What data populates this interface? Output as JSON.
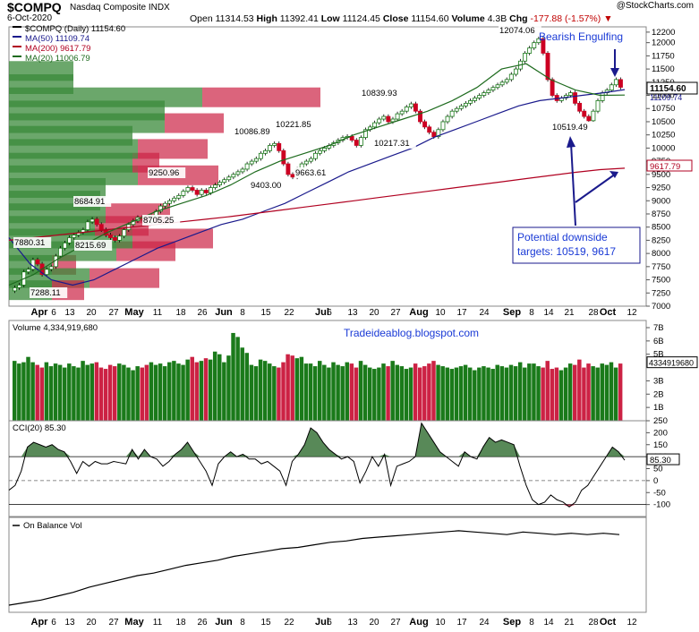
{
  "header": {
    "ticker": "$COMPQ",
    "date": "6-Oct-2020",
    "subtitle": "Nasdaq Composite INDX",
    "copyright": "@StockCharts.com",
    "open_label": "Open",
    "open": "11314.53",
    "high_label": "High",
    "high": "11392.41",
    "low_label": "Low",
    "low": "11124.45",
    "close_label": "Close",
    "close": "11154.60",
    "volume_label": "Volume",
    "volume": "4.3B",
    "chg_label": "Chg",
    "chg": "-177.88 (-1.57%)"
  },
  "price_panel": {
    "legend": [
      "$COMPQ (Daily) 11154.60",
      "MA(50) 11109.74",
      "MA(200) 9617.79",
      "MA(20) 11006.79"
    ],
    "legend_colors": [
      "#000000",
      "#1a1a8c",
      "#b00020",
      "#1e6b1e"
    ],
    "yticks": [
      "12200",
      "12000",
      "11750",
      "11500",
      "11250",
      "11000",
      "10750",
      "10500",
      "10250",
      "10000",
      "9750",
      "9500",
      "9250",
      "9000",
      "8750",
      "8500",
      "8250",
      "8000",
      "7750",
      "7500",
      "7250",
      "7000"
    ],
    "last_price": "11154.60",
    "ma50_value": "11109.74",
    "ma200_value": "9617.79",
    "annotations": {
      "bearish": "Bearish Engulfing",
      "targets_line1": "Potential downside",
      "targets_line2": "targets: 10519, 9617"
    },
    "price_labels": [
      "12074.06",
      "10839.93",
      "10221.85",
      "10086.89",
      "10217.31",
      "9663.61",
      "9403.00",
      "9250.96",
      "8684.91",
      "8705.25",
      "8215.69",
      "7880.31",
      "7288.11",
      "10519.49"
    ]
  },
  "volume_panel": {
    "legend": "Volume 4,334,919,680",
    "yticks": [
      "7B",
      "6B",
      "5B",
      "3B",
      "2B",
      "1B"
    ],
    "last_value": "4334919680",
    "watermark": "Tradeideablog.blogspot.com"
  },
  "cci_panel": {
    "legend": "CCI(20) 85.30",
    "yticks": [
      "250",
      "200",
      "150",
      "100",
      "50",
      "0",
      "-50",
      "-100"
    ],
    "last_value": "85.30"
  },
  "obv_panel": {
    "legend": "On Balance Vol"
  },
  "x_axis": {
    "labels": [
      "Apr",
      "6",
      "13",
      "20",
      "27",
      "May",
      "11",
      "18",
      "26",
      "Jun",
      "8",
      "15",
      "22",
      "Jul",
      "6",
      "13",
      "20",
      "27",
      "Aug",
      "10",
      "17",
      "24",
      "Sep",
      "8",
      "14",
      "21",
      "28",
      "Oct",
      "12"
    ]
  },
  "chart_data": [
    {
      "type": "candlestick",
      "title": "$COMPQ (Daily) 11154.60",
      "ylim": [
        7000,
        12300
      ],
      "series": [
        {
          "name": "$COMPQ",
          "values": [
            7350,
            7400,
            7650,
            7700,
            7880,
            7800,
            7600,
            7700,
            7750,
            7950,
            8100,
            8200,
            8300,
            8350,
            8400,
            8450,
            8600,
            8650,
            8550,
            8450,
            8350,
            8300,
            8250,
            8330,
            8450,
            8550,
            8620,
            8684,
            8650,
            8600,
            8700,
            8800,
            8900,
            8950,
            9000,
            9050,
            9100,
            9180,
            9250,
            9200,
            9120,
            9200,
            9150,
            9250,
            9300,
            9350,
            9400,
            9450,
            9500,
            9550,
            9600,
            9700,
            9750,
            9800,
            9900,
            9950,
            10050,
            10086,
            9950,
            9700,
            9500,
            9450,
            9600,
            9700,
            9750,
            9800,
            9900,
            9950,
            10000,
            10050,
            10100,
            10150,
            10200,
            10221,
            10150,
            10050,
            10200,
            10350,
            10400,
            10480,
            10550,
            10600,
            10500,
            10550,
            10650,
            10700,
            10780,
            10839,
            10700,
            10500,
            10400,
            10300,
            10217,
            10350,
            10500,
            10600,
            10700,
            10750,
            10800,
            10850,
            10900,
            10950,
            11000,
            11050,
            11100,
            11150,
            11200,
            11250,
            11300,
            11400,
            11500,
            11650,
            11800,
            11900,
            12000,
            12074,
            11800,
            11300,
            11000,
            10900,
            10950,
            11000,
            11050,
            10850,
            10700,
            10600,
            10519,
            10700,
            10900,
            11050,
            11100,
            11200,
            11300,
            11154
          ]
        },
        {
          "name": "MA(50)",
          "values": [
            8300,
            7800,
            7500,
            7400,
            7500,
            7700,
            7900,
            8100,
            8250,
            8400,
            8550,
            8650,
            8800,
            8950,
            9150,
            9350,
            9550,
            9700,
            9850,
            10000,
            10200,
            10350,
            10500,
            10650,
            10800,
            10900,
            10950,
            11000,
            11050,
            11109
          ]
        },
        {
          "name": "MA(200)",
          "values": [
            8250,
            8300,
            8350,
            8400,
            8450,
            8500,
            8550,
            8600,
            8650,
            8700,
            8760,
            8820,
            8880,
            8940,
            9000,
            9060,
            9120,
            9180,
            9240,
            9300,
            9360,
            9420,
            9480,
            9540,
            9590,
            9617
          ]
        },
        {
          "name": "MA(20)",
          "values": [
            7400,
            7600,
            7900,
            8150,
            8400,
            8600,
            8800,
            8950,
            9100,
            9300,
            9550,
            9750,
            9900,
            10050,
            10250,
            10400,
            10550,
            10700,
            10900,
            11150,
            11500,
            11600,
            11300,
            11100,
            11000,
            11006
          ]
        }
      ],
      "annotations": [
        "Bearish Engulfing",
        "Potential downside targets: 10519, 9617"
      ],
      "legend": "top-left"
    },
    {
      "type": "bar",
      "title": "Volume 4,334,919,680",
      "ylim": [
        0,
        7
      ],
      "ylabel": "B",
      "values": [
        4.5,
        4.3,
        4.4,
        4.8,
        4.4,
        4.2,
        4.0,
        4.4,
        4.1,
        4.3,
        4.2,
        4.0,
        4.3,
        4.1,
        4.0,
        4.5,
        4.2,
        4.3,
        4.4,
        4.0,
        3.9,
        4.2,
        4.1,
        4.3,
        4.2,
        4.0,
        3.8,
        4.1,
        4.0,
        4.2,
        4.4,
        4.2,
        4.3,
        4.1,
        4.4,
        4.5,
        4.3,
        4.2,
        4.6,
        4.8,
        4.4,
        4.5,
        4.7,
        4.6,
        5.2,
        5.0,
        4.4,
        4.9,
        6.6,
        6.3,
        5.5,
        5.1,
        4.2,
        4.1,
        4.6,
        4.5,
        4.3,
        4.1,
        4.0,
        4.4,
        5.0,
        4.9,
        4.7,
        4.8,
        4.3,
        4.3,
        4.1,
        4.5,
        4.2,
        4.0,
        4.4,
        4.2,
        4.1,
        4.4,
        4.3,
        4.0,
        4.5,
        4.2,
        4.0,
        3.9,
        4.0,
        4.3,
        4.1,
        4.5,
        4.2,
        4.1,
        3.9,
        4.0,
        4.3,
        4.0,
        4.1,
        4.3,
        4.5,
        4.2,
        4.1,
        4.0,
        3.9,
        4.0,
        4.1,
        4.2,
        4.0,
        3.8,
        4.0,
        4.1,
        4.0,
        3.9,
        4.2,
        4.1,
        4.0,
        4.2,
        4.1,
        4.4,
        4.0,
        4.3,
        4.3,
        4.1,
        4.0,
        4.5,
        3.9,
        4.0,
        3.8,
        4.0,
        4.3,
        4.2,
        4.6,
        4.0,
        4.3,
        4.1,
        4.0,
        4.3,
        4.2,
        4.4,
        4.0,
        4.3
      ]
    },
    {
      "type": "line",
      "title": "CCI(20) 85.30",
      "ylim": [
        -150,
        250
      ],
      "values": [
        -40,
        -20,
        40,
        140,
        160,
        150,
        140,
        150,
        130,
        120,
        80,
        30,
        80,
        60,
        80,
        70,
        70,
        80,
        75,
        70,
        130,
        90,
        130,
        100,
        90,
        60,
        80,
        110,
        130,
        160,
        120,
        80,
        40,
        -20,
        70,
        100,
        120,
        100,
        110,
        90,
        90,
        70,
        80,
        60,
        40,
        -20,
        80,
        110,
        150,
        220,
        200,
        160,
        130,
        110,
        90,
        100,
        80,
        -10,
        40,
        100,
        60,
        110,
        -20,
        60,
        70,
        80,
        100,
        240,
        200,
        160,
        120,
        100,
        80,
        60,
        120,
        100,
        90,
        140,
        180,
        160,
        170,
        160,
        150,
        60,
        -20,
        -80,
        -100,
        -90,
        -60,
        -80,
        -90,
        -110,
        -90,
        -40,
        -20,
        20,
        60,
        100,
        140,
        120,
        85
      ]
    },
    {
      "type": "line",
      "title": "On Balance Vol",
      "values": [
        0,
        2,
        4,
        7,
        10,
        14,
        17,
        20,
        23,
        25,
        28,
        31,
        33,
        35,
        38,
        40,
        42,
        44,
        45,
        47,
        49,
        50,
        52,
        53,
        54,
        55,
        56,
        57,
        58,
        57,
        56,
        55,
        57,
        56,
        55,
        56,
        55,
        56,
        55
      ]
    }
  ]
}
